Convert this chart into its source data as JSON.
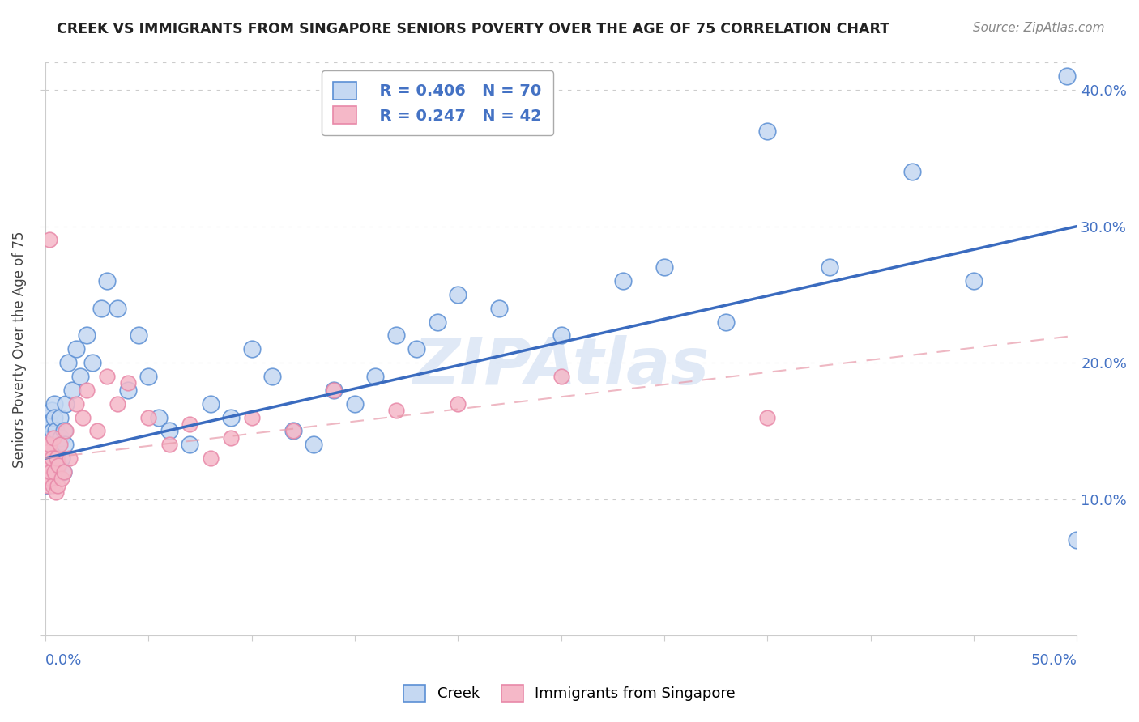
{
  "title": "CREEK VS IMMIGRANTS FROM SINGAPORE SENIORS POVERTY OVER THE AGE OF 75 CORRELATION CHART",
  "source": "Source: ZipAtlas.com",
  "ylabel": "Seniors Poverty Over the Age of 75",
  "xmin": 0.0,
  "xmax": 50.0,
  "ymin": 0.0,
  "ymax": 42.0,
  "watermark": "ZIPAtlas",
  "blue_fill": "#c5d8f2",
  "blue_edge": "#5b8fd4",
  "pink_fill": "#f5b8c8",
  "pink_edge": "#e888a8",
  "blue_line": "#3a6bbf",
  "pink_line": "#e89aaa",
  "axis_color": "#4472c4",
  "legend_r_creek": "R = 0.406",
  "legend_n_creek": "N = 70",
  "legend_r_singapore": "R = 0.247",
  "legend_n_singapore": "N = 42",
  "legend_label_creek": "Creek",
  "legend_label_singapore": "Immigrants from Singapore",
  "creek_x": [
    0.05,
    0.07,
    0.08,
    0.1,
    0.12,
    0.13,
    0.15,
    0.17,
    0.18,
    0.2,
    0.22,
    0.25,
    0.27,
    0.3,
    0.32,
    0.35,
    0.37,
    0.4,
    0.42,
    0.45,
    0.5,
    0.55,
    0.6,
    0.65,
    0.7,
    0.75,
    0.8,
    0.85,
    0.9,
    0.95,
    1.0,
    1.1,
    1.3,
    1.5,
    1.7,
    2.0,
    2.3,
    2.7,
    3.0,
    3.5,
    4.0,
    4.5,
    5.0,
    5.5,
    6.0,
    7.0,
    8.0,
    9.0,
    10.0,
    11.0,
    12.0,
    13.0,
    14.0,
    15.0,
    16.0,
    17.0,
    18.0,
    19.0,
    20.0,
    22.0,
    25.0,
    28.0,
    30.0,
    33.0,
    35.0,
    38.0,
    42.0,
    45.0,
    49.5,
    50.0
  ],
  "creek_y": [
    13.5,
    11.0,
    14.0,
    12.5,
    15.0,
    13.0,
    16.0,
    12.0,
    14.5,
    13.0,
    15.5,
    11.5,
    14.0,
    16.5,
    12.0,
    13.5,
    15.0,
    14.0,
    17.0,
    16.0,
    15.0,
    13.0,
    14.0,
    12.5,
    16.0,
    14.5,
    13.0,
    12.0,
    15.0,
    14.0,
    17.0,
    20.0,
    18.0,
    21.0,
    19.0,
    22.0,
    20.0,
    24.0,
    26.0,
    24.0,
    18.0,
    22.0,
    19.0,
    16.0,
    15.0,
    14.0,
    17.0,
    16.0,
    21.0,
    19.0,
    15.0,
    14.0,
    18.0,
    17.0,
    19.0,
    22.0,
    21.0,
    23.0,
    25.0,
    24.0,
    22.0,
    26.0,
    27.0,
    23.0,
    37.0,
    27.0,
    34.0,
    26.0,
    41.0,
    7.0
  ],
  "singapore_x": [
    0.05,
    0.08,
    0.1,
    0.12,
    0.15,
    0.17,
    0.2,
    0.22,
    0.25,
    0.3,
    0.35,
    0.4,
    0.45,
    0.5,
    0.55,
    0.6,
    0.65,
    0.7,
    0.8,
    0.9,
    1.0,
    1.2,
    1.5,
    1.8,
    2.0,
    2.5,
    3.0,
    3.5,
    4.0,
    5.0,
    6.0,
    7.0,
    8.0,
    9.0,
    10.0,
    12.0,
    14.0,
    17.0,
    20.0,
    25.0,
    35.0,
    0.18
  ],
  "singapore_y": [
    13.0,
    12.0,
    14.0,
    11.0,
    13.5,
    12.5,
    14.0,
    11.5,
    12.0,
    13.0,
    11.0,
    14.5,
    12.0,
    10.5,
    13.0,
    11.0,
    12.5,
    14.0,
    11.5,
    12.0,
    15.0,
    13.0,
    17.0,
    16.0,
    18.0,
    15.0,
    19.0,
    17.0,
    18.5,
    16.0,
    14.0,
    15.5,
    13.0,
    14.5,
    16.0,
    15.0,
    18.0,
    16.5,
    17.0,
    19.0,
    16.0,
    29.0
  ],
  "creek_line_x0": 0.0,
  "creek_line_y0": 13.0,
  "creek_line_x1": 50.0,
  "creek_line_y1": 30.0,
  "singapore_line_x0": 0.0,
  "singapore_line_y0": 13.0,
  "singapore_line_x1": 50.0,
  "singapore_line_y1": 22.0
}
